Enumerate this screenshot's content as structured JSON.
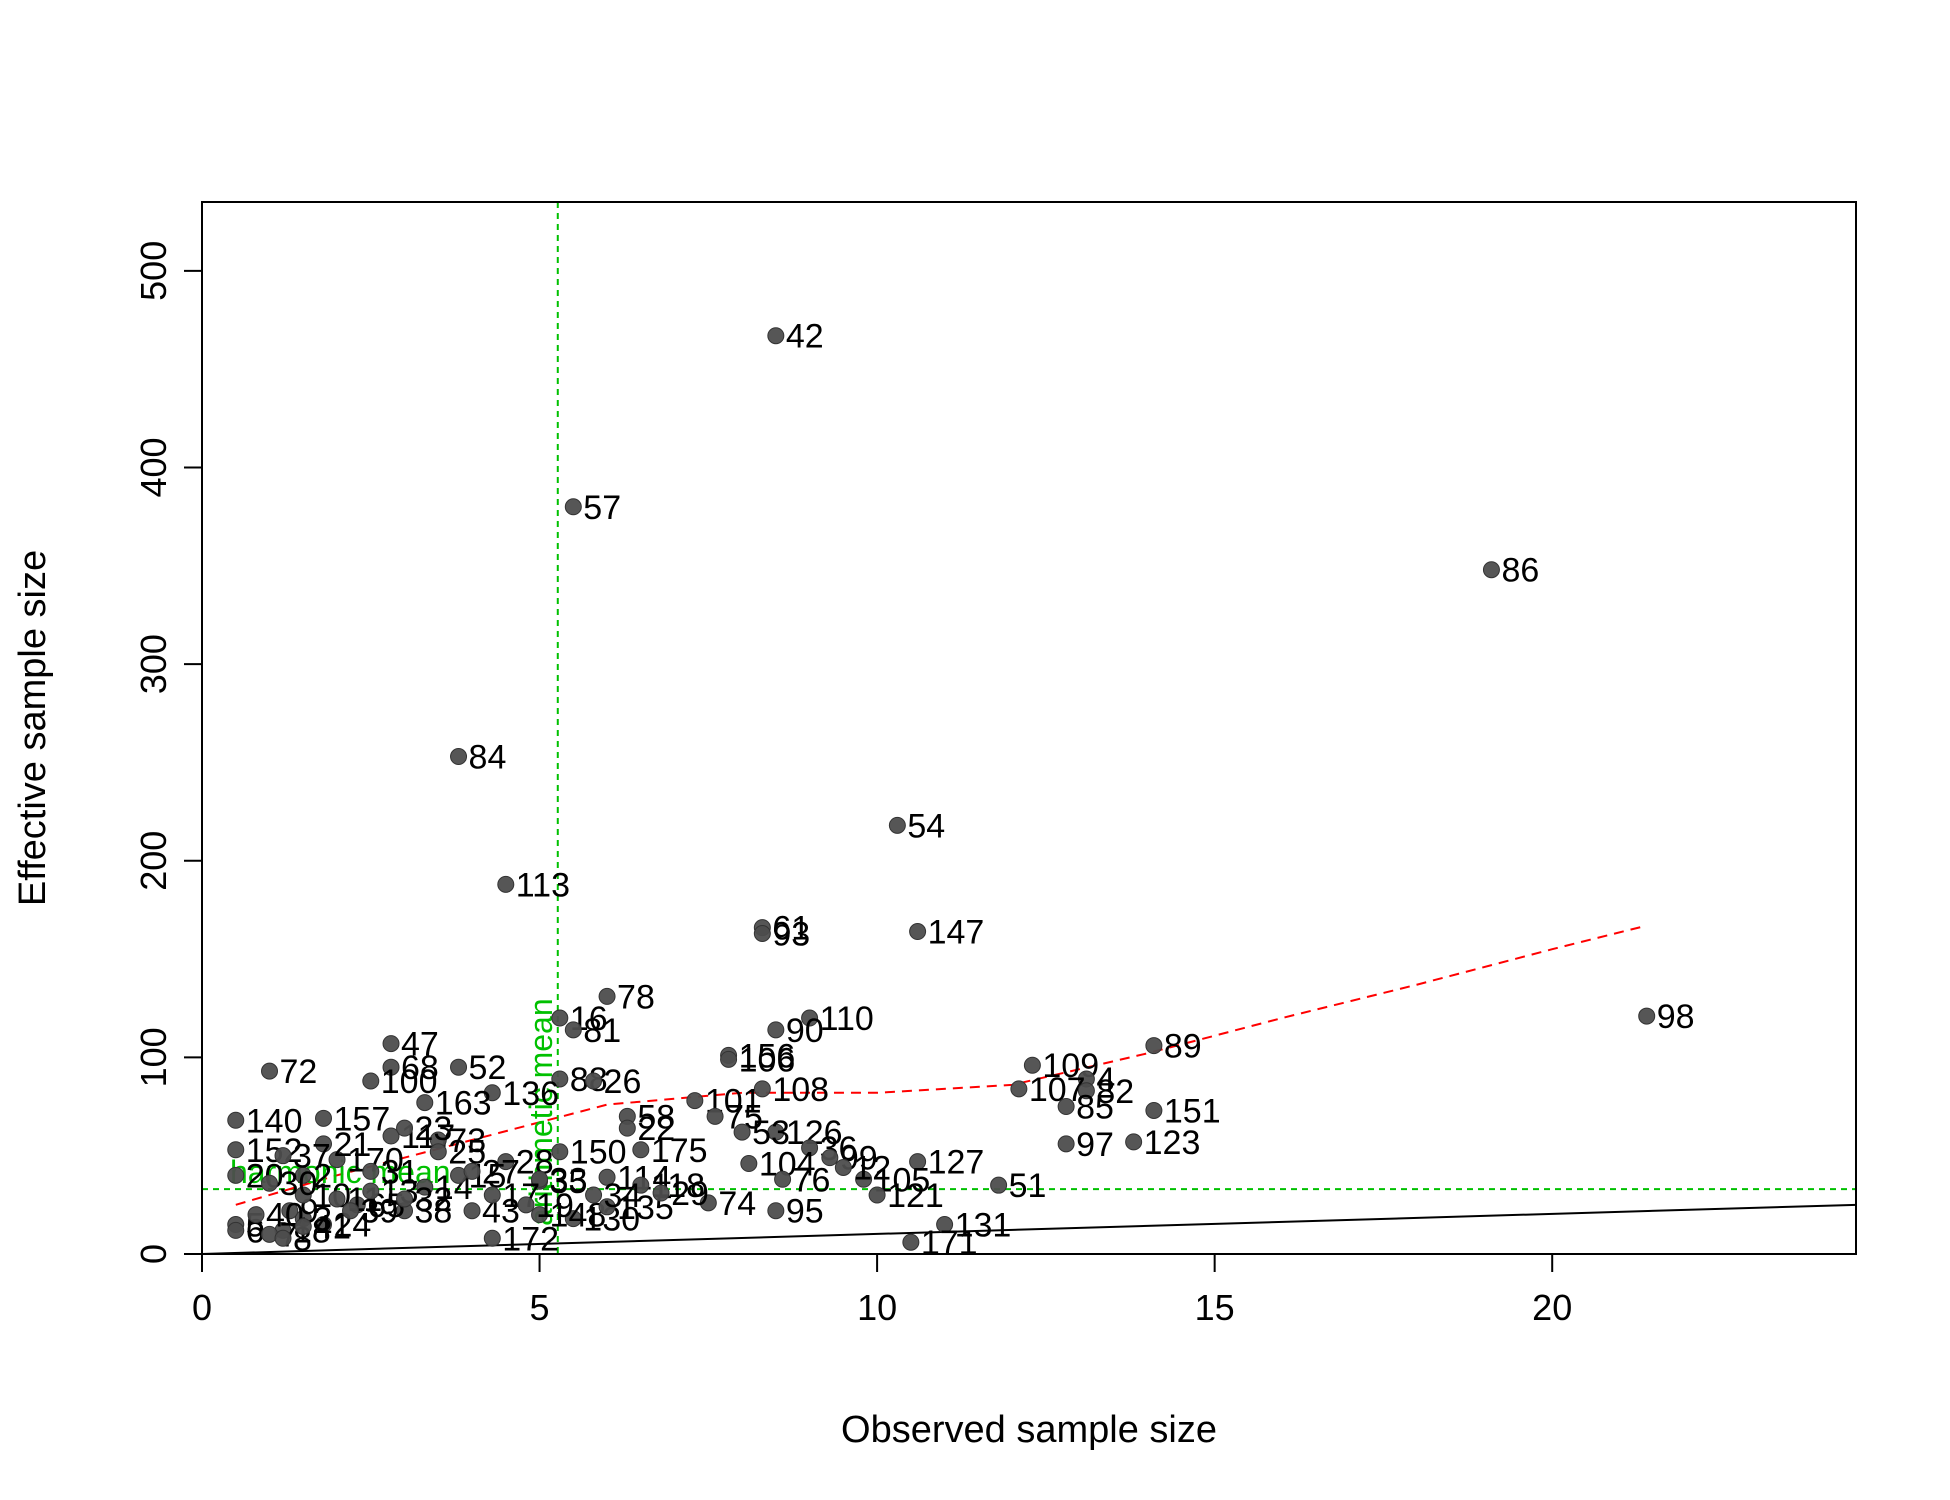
{
  "chart_data": {
    "type": "scatter",
    "title": "",
    "xlabel": "Observed sample size",
    "ylabel": "Effective sample size",
    "xlim": [
      0,
      24.5
    ],
    "ylim": [
      0,
      535
    ],
    "x_ticks": [
      0,
      5,
      10,
      15,
      20
    ],
    "y_ticks": [
      0,
      100,
      200,
      300,
      400,
      500
    ],
    "grid": false,
    "point_color": "#4d4d4d",
    "points": [
      {
        "label": "42",
        "x": 8.5,
        "y": 467
      },
      {
        "label": "57",
        "x": 5.5,
        "y": 380
      },
      {
        "label": "86",
        "x": 19.1,
        "y": 348
      },
      {
        "label": "84",
        "x": 3.8,
        "y": 253
      },
      {
        "label": "54",
        "x": 10.3,
        "y": 218
      },
      {
        "label": "113",
        "x": 4.5,
        "y": 188
      },
      {
        "label": "61",
        "x": 8.3,
        "y": 166
      },
      {
        "label": "93",
        "x": 8.3,
        "y": 163
      },
      {
        "label": "147",
        "x": 10.6,
        "y": 164
      },
      {
        "label": "78",
        "x": 6.0,
        "y": 131
      },
      {
        "label": "98",
        "x": 21.4,
        "y": 121
      },
      {
        "label": "110",
        "x": 9.0,
        "y": 120
      },
      {
        "label": "90",
        "x": 8.5,
        "y": 114
      },
      {
        "label": "16",
        "x": 5.3,
        "y": 120
      },
      {
        "label": "81",
        "x": 5.5,
        "y": 114
      },
      {
        "label": "47",
        "x": 2.8,
        "y": 107
      },
      {
        "label": "89",
        "x": 14.1,
        "y": 106
      },
      {
        "label": "156",
        "x": 7.8,
        "y": 101
      },
      {
        "label": "106",
        "x": 7.8,
        "y": 99
      },
      {
        "label": "109",
        "x": 12.3,
        "y": 96
      },
      {
        "label": "68",
        "x": 2.8,
        "y": 95
      },
      {
        "label": "52",
        "x": 3.8,
        "y": 95
      },
      {
        "label": "72",
        "x": 1.0,
        "y": 93
      },
      {
        "label": "88",
        "x": 5.3,
        "y": 89
      },
      {
        "label": "26",
        "x": 5.8,
        "y": 88
      },
      {
        "label": "4",
        "x": 13.1,
        "y": 89
      },
      {
        "label": "100",
        "x": 2.5,
        "y": 88
      },
      {
        "label": "108",
        "x": 8.3,
        "y": 84
      },
      {
        "label": "107",
        "x": 12.1,
        "y": 84
      },
      {
        "label": "82",
        "x": 13.1,
        "y": 83
      },
      {
        "label": "136",
        "x": 4.3,
        "y": 82
      },
      {
        "label": "101",
        "x": 7.3,
        "y": 78
      },
      {
        "label": "163",
        "x": 3.3,
        "y": 77
      },
      {
        "label": "85",
        "x": 12.8,
        "y": 75
      },
      {
        "label": "151",
        "x": 14.1,
        "y": 73
      },
      {
        "label": "58",
        "x": 6.3,
        "y": 70
      },
      {
        "label": "75",
        "x": 7.6,
        "y": 70
      },
      {
        "label": "140",
        "x": 0.5,
        "y": 68
      },
      {
        "label": "157",
        "x": 1.8,
        "y": 69
      },
      {
        "label": "126",
        "x": 8.5,
        "y": 62
      },
      {
        "label": "53",
        "x": 8.0,
        "y": 62
      },
      {
        "label": "22",
        "x": 6.3,
        "y": 64
      },
      {
        "label": "97",
        "x": 12.8,
        "y": 56
      },
      {
        "label": "123",
        "x": 13.8,
        "y": 57
      },
      {
        "label": "175",
        "x": 6.5,
        "y": 53
      },
      {
        "label": "150",
        "x": 5.3,
        "y": 52
      },
      {
        "label": "36",
        "x": 9.0,
        "y": 54
      },
      {
        "label": "99",
        "x": 9.3,
        "y": 49
      },
      {
        "label": "127",
        "x": 10.6,
        "y": 47
      },
      {
        "label": "104",
        "x": 8.1,
        "y": 46
      },
      {
        "label": "152",
        "x": 0.5,
        "y": 53
      },
      {
        "label": "105",
        "x": 9.8,
        "y": 38
      },
      {
        "label": "51",
        "x": 11.8,
        "y": 35
      },
      {
        "label": "121",
        "x": 10.0,
        "y": 30
      },
      {
        "label": "114",
        "x": 6.0,
        "y": 39
      },
      {
        "label": "35",
        "x": 5.0,
        "y": 37
      },
      {
        "label": "74",
        "x": 7.5,
        "y": 26
      },
      {
        "label": "95",
        "x": 8.5,
        "y": 22
      },
      {
        "label": "131",
        "x": 11.0,
        "y": 15
      },
      {
        "label": "171",
        "x": 10.5,
        "y": 6
      },
      {
        "label": "172",
        "x": 4.3,
        "y": 8
      },
      {
        "label": "130",
        "x": 5.5,
        "y": 18
      },
      {
        "label": "148",
        "x": 5.0,
        "y": 20
      },
      {
        "label": "43",
        "x": 4.0,
        "y": 22
      },
      {
        "label": "38",
        "x": 3.0,
        "y": 22
      },
      {
        "label": "24",
        "x": 1.8,
        "y": 15
      },
      {
        "label": "18",
        "x": 1.2,
        "y": 12
      },
      {
        "label": "65",
        "x": 2.3,
        "y": 25
      },
      {
        "label": "135",
        "x": 6.0,
        "y": 24
      },
      {
        "label": "170",
        "x": 2.0,
        "y": 48
      },
      {
        "label": "117",
        "x": 2.8,
        "y": 60
      },
      {
        "label": "73",
        "x": 3.5,
        "y": 58
      },
      {
        "label": "28",
        "x": 4.5,
        "y": 47
      },
      {
        "label": "33",
        "x": 5.0,
        "y": 38
      },
      {
        "label": "118",
        "x": 6.5,
        "y": 35
      },
      {
        "label": "29",
        "x": 6.8,
        "y": 31
      },
      {
        "label": "76",
        "x": 8.6,
        "y": 38
      },
      {
        "label": "12",
        "x": 9.5,
        "y": 44
      },
      {
        "label": "2",
        "x": 1.5,
        "y": 40
      },
      {
        "label": "3",
        "x": 1.5,
        "y": 18
      },
      {
        "label": "5",
        "x": 0.5,
        "y": 15
      },
      {
        "label": "6",
        "x": 0.5,
        "y": 12
      },
      {
        "label": "7",
        "x": 1.0,
        "y": 10
      },
      {
        "label": "8",
        "x": 1.2,
        "y": 8
      },
      {
        "label": "9",
        "x": 1.3,
        "y": 22
      },
      {
        "label": "10",
        "x": 1.5,
        "y": 30
      },
      {
        "label": "11",
        "x": 2.0,
        "y": 28
      },
      {
        "label": "13",
        "x": 2.5,
        "y": 32
      },
      {
        "label": "14",
        "x": 3.3,
        "y": 34
      },
      {
        "label": "15",
        "x": 3.8,
        "y": 40
      },
      {
        "label": "17",
        "x": 4.3,
        "y": 30
      },
      {
        "label": "19",
        "x": 4.8,
        "y": 25
      },
      {
        "label": "20",
        "x": 0.5,
        "y": 40
      },
      {
        "label": "21",
        "x": 1.8,
        "y": 56
      },
      {
        "label": "23",
        "x": 3.0,
        "y": 64
      },
      {
        "label": "25",
        "x": 3.5,
        "y": 52
      },
      {
        "label": "27",
        "x": 4.0,
        "y": 42
      },
      {
        "label": "30",
        "x": 1.0,
        "y": 36
      },
      {
        "label": "31",
        "x": 2.5,
        "y": 42
      },
      {
        "label": "32",
        "x": 3.0,
        "y": 28
      },
      {
        "label": "34",
        "x": 5.8,
        "y": 30
      },
      {
        "label": "37",
        "x": 1.2,
        "y": 50
      },
      {
        "label": "39",
        "x": 2.2,
        "y": 22
      },
      {
        "label": "40",
        "x": 0.8,
        "y": 20
      },
      {
        "label": "41",
        "x": 1.5,
        "y": 14
      }
    ],
    "reference_lines": [
      {
        "kind": "diagonal",
        "label": "",
        "color": "#000000",
        "style": "solid",
        "from": [
          0,
          0
        ],
        "to": [
          24.5,
          25
        ]
      },
      {
        "kind": "vertical",
        "label": "arithmetic mean",
        "color": "#00c000",
        "style": "dashed",
        "x": 5.27
      },
      {
        "kind": "horizontal",
        "label": "harmonic mean",
        "color": "#00c000",
        "style": "dashed",
        "y": 33
      }
    ],
    "trend_line": {
      "color": "#ff0000",
      "style": "dashed",
      "points": [
        [
          0.5,
          25
        ],
        [
          2,
          40
        ],
        [
          4,
          58
        ],
        [
          6,
          76
        ],
        [
          8,
          82
        ],
        [
          10,
          82
        ],
        [
          12,
          86
        ],
        [
          14,
          102
        ],
        [
          16,
          120
        ],
        [
          18,
          137
        ],
        [
          20,
          155
        ],
        [
          21.4,
          167
        ]
      ]
    }
  }
}
